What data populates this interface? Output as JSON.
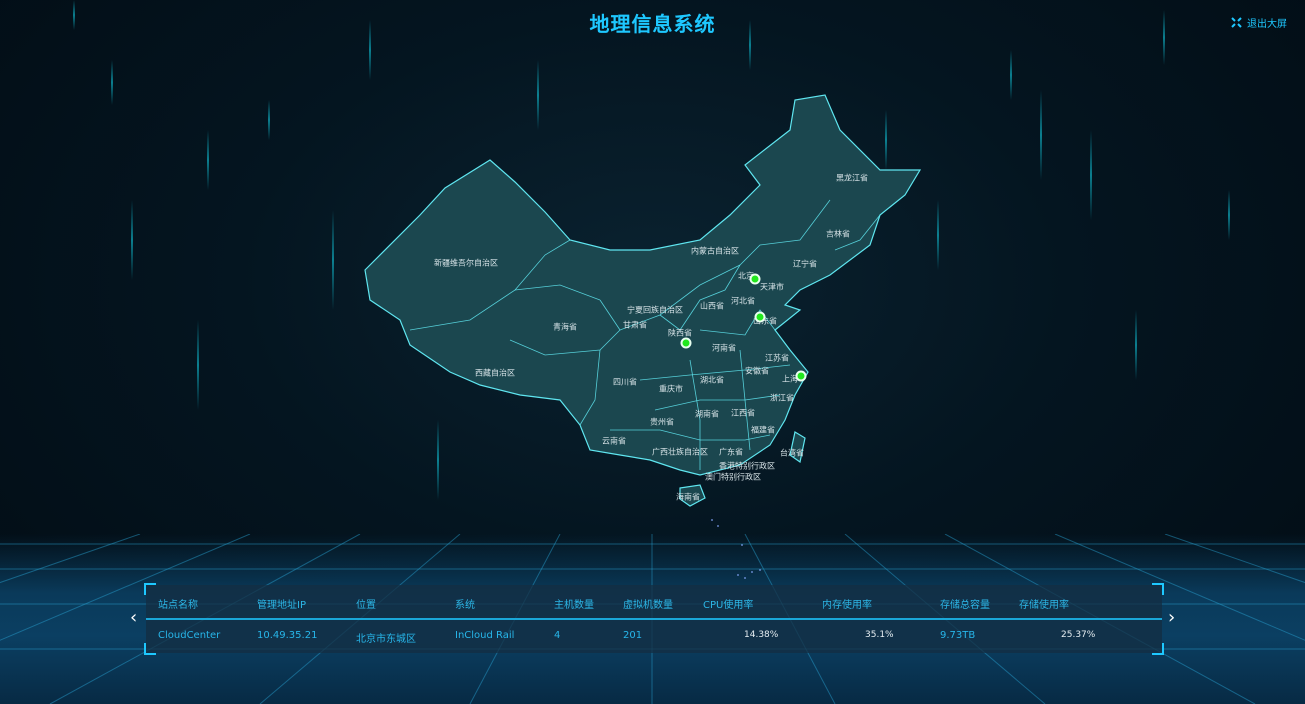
{
  "header": {
    "title": "地理信息系统",
    "exit_label": "退出大屏",
    "exit_icon": "shrink-icon"
  },
  "colors": {
    "accent": "#1ec8ff",
    "map_fill": "#1b474f",
    "map_border": "#5fe6f0",
    "marker": "#22e81e"
  },
  "map": {
    "provinces": [
      "新疆维吾尔自治区",
      "西藏自治区",
      "青海省",
      "内蒙古自治区",
      "黑龙江省",
      "吉林省",
      "辽宁省",
      "北京",
      "天津市",
      "河北省",
      "山西省",
      "山东省",
      "宁夏回族自治区",
      "甘肃省",
      "陕西省",
      "河南省",
      "江苏省",
      "安徽省",
      "上海",
      "四川省",
      "重庆市",
      "湖北省",
      "浙江省",
      "湖南省",
      "江西省",
      "贵州省",
      "云南省",
      "福建省",
      "广西壮族自治区",
      "广东省",
      "台湾省",
      "香港特别行政区",
      "澳门特别行政区",
      "海南省"
    ]
  },
  "table": {
    "headers": [
      "站点名称",
      "管理地址IP",
      "位置",
      "系统",
      "主机数量",
      "虚拟机数量",
      "CPU使用率",
      "内存使用率",
      "存储总容量",
      "存储使用率"
    ],
    "rows": [
      [
        "CloudCenter",
        "10.49.35.21",
        "北京市东城区",
        "InCloud Rail",
        "4",
        "201",
        "14.38%",
        "35.1%",
        "9.73TB",
        "25.37%"
      ]
    ]
  }
}
